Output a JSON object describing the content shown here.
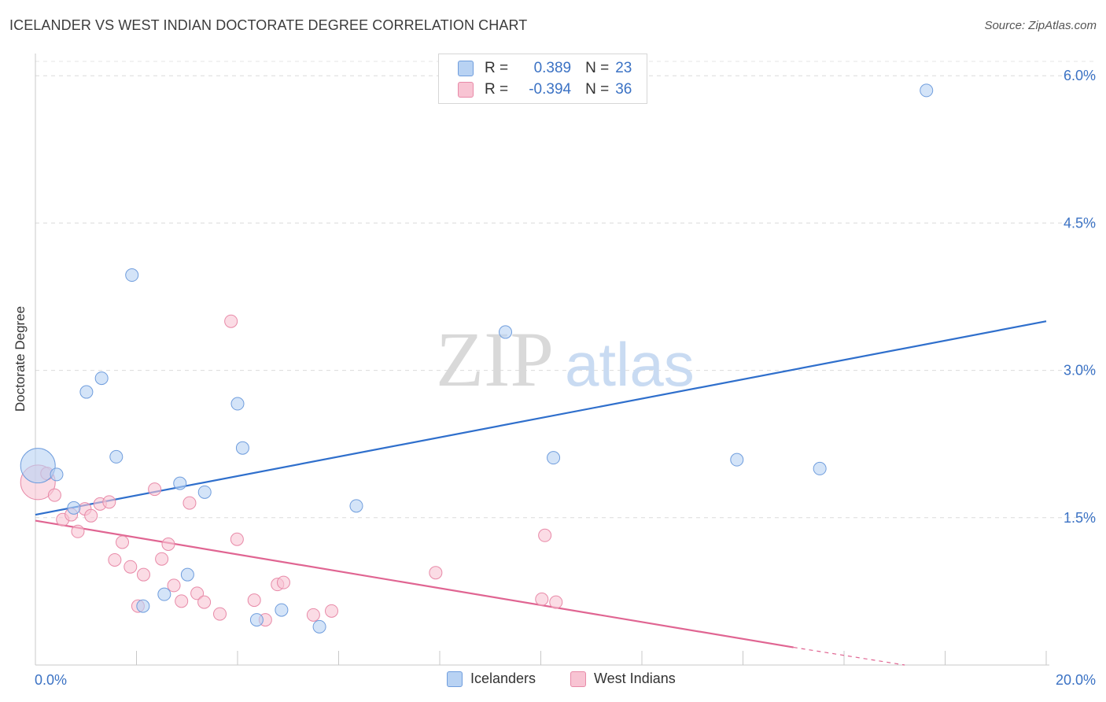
{
  "title": "ICELANDER VS WEST INDIAN DOCTORATE DEGREE CORRELATION CHART",
  "source": "Source: ZipAtlas.com",
  "watermark": {
    "part1": "ZIP",
    "part2": "atlas"
  },
  "legend": {
    "rows": [
      {
        "r_label": "R =",
        "r_value": "0.389",
        "n_label": "N =",
        "n_value": "23",
        "fill": "#b8d2f3",
        "stroke": "#6f9ddd"
      },
      {
        "r_label": "R =",
        "r_value": "-0.394",
        "n_label": "N =",
        "n_value": "36",
        "fill": "#f8c4d3",
        "stroke": "#e88aa8"
      }
    ]
  },
  "bottom_legend": [
    {
      "label": "Icelanders",
      "fill": "#b8d2f3",
      "stroke": "#6f9ddd"
    },
    {
      "label": "West Indians",
      "fill": "#f8c4d3",
      "stroke": "#e88aa8"
    }
  ],
  "chart_data": {
    "type": "scatter",
    "title": "ICELANDER VS WEST INDIAN DOCTORATE DEGREE CORRELATION CHART",
    "xlabel": "",
    "ylabel": "Doctorate Degree",
    "xlim": [
      0,
      20
    ],
    "ylim": [
      0,
      6.25
    ],
    "x_tick_labels": [
      "0.0%",
      "20.0%"
    ],
    "y_ticks": [
      1.5,
      3.0,
      4.5,
      6.0
    ],
    "y_tick_labels": [
      "1.5%",
      "3.0%",
      "4.5%",
      "6.0%"
    ],
    "grid": true,
    "series": [
      {
        "name": "Icelanders",
        "color": "#6f9ddd",
        "fill": "#b8d2f3",
        "line_color": "#2f6fcc",
        "points": [
          {
            "x": 0.05,
            "y": 2.03,
            "big": true
          },
          {
            "x": 0.42,
            "y": 1.94
          },
          {
            "x": 0.76,
            "y": 1.6
          },
          {
            "x": 1.01,
            "y": 2.78
          },
          {
            "x": 1.31,
            "y": 2.92
          },
          {
            "x": 1.6,
            "y": 2.12
          },
          {
            "x": 1.91,
            "y": 3.97
          },
          {
            "x": 2.13,
            "y": 0.6
          },
          {
            "x": 2.55,
            "y": 0.72
          },
          {
            "x": 2.86,
            "y": 1.85
          },
          {
            "x": 3.01,
            "y": 0.92
          },
          {
            "x": 3.35,
            "y": 1.76
          },
          {
            "x": 4.0,
            "y": 2.66
          },
          {
            "x": 4.1,
            "y": 2.21
          },
          {
            "x": 4.38,
            "y": 0.46
          },
          {
            "x": 4.87,
            "y": 0.56
          },
          {
            "x": 5.62,
            "y": 0.39
          },
          {
            "x": 6.35,
            "y": 1.62
          },
          {
            "x": 9.3,
            "y": 3.39
          },
          {
            "x": 10.25,
            "y": 2.11
          },
          {
            "x": 13.88,
            "y": 2.09
          },
          {
            "x": 15.52,
            "y": 2.0
          },
          {
            "x": 17.63,
            "y": 5.85
          }
        ],
        "trend": {
          "x0": 0.0,
          "y0": 1.53,
          "x1": 20.0,
          "y1": 3.5
        }
      },
      {
        "name": "West Indians",
        "color": "#e88aa8",
        "fill": "#f8c4d3",
        "line_color": "#e06592",
        "points": [
          {
            "x": 0.05,
            "y": 1.86,
            "big": true
          },
          {
            "x": 0.23,
            "y": 1.95
          },
          {
            "x": 0.38,
            "y": 1.73
          },
          {
            "x": 0.54,
            "y": 1.48
          },
          {
            "x": 0.71,
            "y": 1.53
          },
          {
            "x": 0.84,
            "y": 1.36
          },
          {
            "x": 0.98,
            "y": 1.59
          },
          {
            "x": 1.1,
            "y": 1.52
          },
          {
            "x": 1.28,
            "y": 1.64
          },
          {
            "x": 1.46,
            "y": 1.66
          },
          {
            "x": 1.57,
            "y": 1.07
          },
          {
            "x": 1.72,
            "y": 1.25
          },
          {
            "x": 1.88,
            "y": 1.0
          },
          {
            "x": 2.03,
            "y": 0.6
          },
          {
            "x": 2.14,
            "y": 0.92
          },
          {
            "x": 2.36,
            "y": 1.79
          },
          {
            "x": 2.5,
            "y": 1.08
          },
          {
            "x": 2.63,
            "y": 1.23
          },
          {
            "x": 2.74,
            "y": 0.81
          },
          {
            "x": 2.89,
            "y": 0.65
          },
          {
            "x": 3.05,
            "y": 1.65
          },
          {
            "x": 3.2,
            "y": 0.73
          },
          {
            "x": 3.34,
            "y": 0.64
          },
          {
            "x": 3.65,
            "y": 0.52
          },
          {
            "x": 3.87,
            "y": 3.5
          },
          {
            "x": 3.99,
            "y": 1.28
          },
          {
            "x": 4.33,
            "y": 0.66
          },
          {
            "x": 4.55,
            "y": 0.46
          },
          {
            "x": 4.79,
            "y": 0.82
          },
          {
            "x": 4.91,
            "y": 0.84
          },
          {
            "x": 5.5,
            "y": 0.51
          },
          {
            "x": 5.86,
            "y": 0.55
          },
          {
            "x": 7.92,
            "y": 0.94
          },
          {
            "x": 10.02,
            "y": 0.67
          },
          {
            "x": 10.08,
            "y": 1.32
          },
          {
            "x": 10.3,
            "y": 0.64
          }
        ],
        "trend": {
          "x0": 0.0,
          "y0": 1.47,
          "x1": 15.0,
          "y1": 0.18,
          "dash_x1": 17.2,
          "dash_y1": 0.0
        }
      }
    ]
  }
}
